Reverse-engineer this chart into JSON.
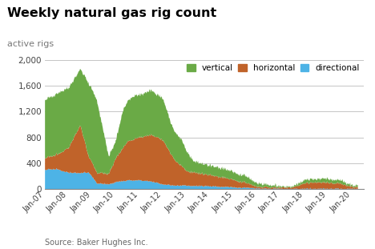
{
  "title": "Weekly natural gas rig count",
  "subtitle": "active rigs",
  "source": "Source: Baker Hughes Inc.",
  "colors": {
    "vertical": "#6aaa46",
    "horizontal": "#c0632a",
    "directional": "#4db3e6"
  },
  "ylim": [
    0,
    2000
  ],
  "yticks": [
    0,
    400,
    800,
    1200,
    1600,
    2000
  ],
  "background_color": "#ffffff",
  "grid_color": "#bbbbbb"
}
